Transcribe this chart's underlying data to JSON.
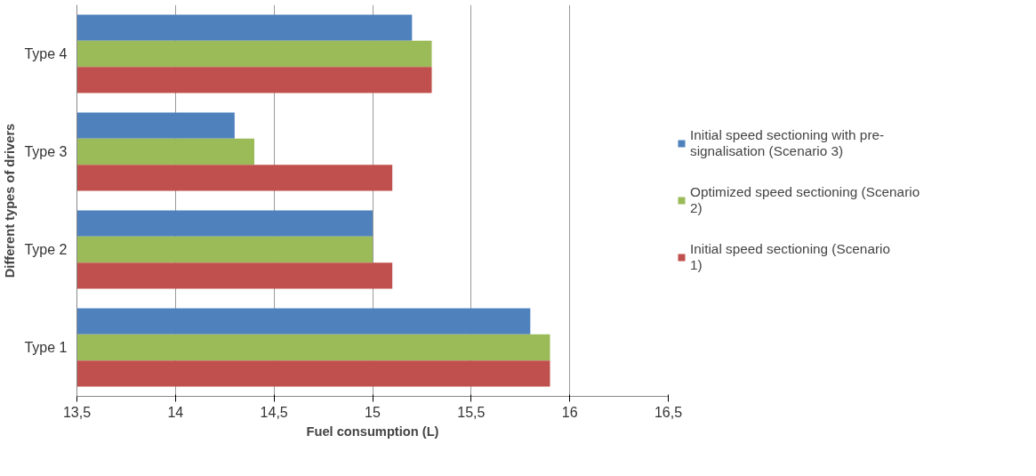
{
  "chart_data": {
    "type": "bar",
    "orientation": "horizontal",
    "xlabel": "Fuel consumption (L)",
    "ylabel": "Different types of drivers",
    "categories": [
      "Type 4",
      "Type 3",
      "Type 2",
      "Type 1"
    ],
    "series": [
      {
        "name": "Initial speed sectioning with pre-signalisation (Scenario 3)",
        "color": "#4f81bd",
        "values": [
          15.2,
          14.3,
          15.0,
          15.8
        ]
      },
      {
        "name": "Optimized speed sectioning (Scenario 2)",
        "color": "#9bbb59",
        "values": [
          15.3,
          14.4,
          15.0,
          15.9
        ]
      },
      {
        "name": "Initial speed sectioning (Scenario 1)",
        "color": "#c0504d",
        "values": [
          15.3,
          15.1,
          15.1,
          15.9
        ]
      }
    ],
    "xlim": [
      13.5,
      16.5
    ],
    "xticks": [
      {
        "value": 13.5,
        "label": "13,5"
      },
      14,
      {
        "value": 14.5,
        "label": "14,5"
      },
      15,
      {
        "value": 15.5,
        "label": "15,5"
      },
      16,
      {
        "value": 16.5,
        "label": "16,5"
      }
    ],
    "grid": "x",
    "legend": "right"
  }
}
